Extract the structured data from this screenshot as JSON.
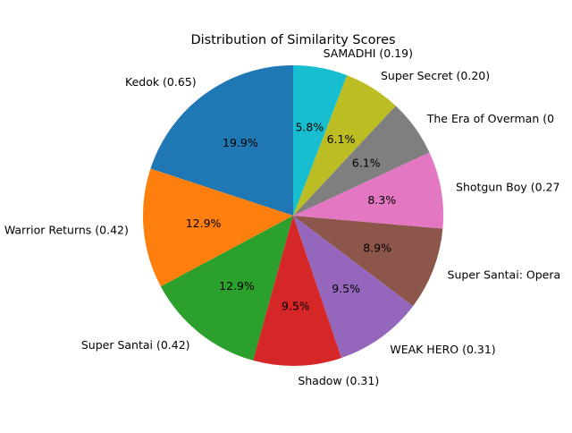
{
  "chart_data": {
    "type": "pie",
    "title": "Distribution of Similarity Scores",
    "start_angle_deg": 90,
    "direction": "counterclockwise",
    "slices": [
      {
        "label": "Kedok (0.65)",
        "value": 0.65,
        "percent_label": "19.9%",
        "color": "#1f77b4"
      },
      {
        "label": "Warrior Returns (0.42)",
        "value": 0.42,
        "percent_label": "12.9%",
        "color": "#ff7f0e"
      },
      {
        "label": "Super Santai (0.42)",
        "value": 0.42,
        "percent_label": "12.9%",
        "color": "#2ca02c"
      },
      {
        "label": "Shadow (0.31)",
        "value": 0.31,
        "percent_label": "9.5%",
        "color": "#d62728"
      },
      {
        "label": "WEAK HERO (0.31)",
        "value": 0.31,
        "percent_label": "9.5%",
        "color": "#9467bd"
      },
      {
        "label": "Super Santai: Opera",
        "value": 0.29,
        "percent_label": "8.9%",
        "color": "#8c564b"
      },
      {
        "label": "Shotgun Boy (0.27",
        "value": 0.27,
        "percent_label": "8.3%",
        "color": "#e377c2"
      },
      {
        "label": "The Era of Overman (0",
        "value": 0.2,
        "percent_label": "6.1%",
        "color": "#7f7f7f"
      },
      {
        "label": "Super Secret (0.20)",
        "value": 0.2,
        "percent_label": "6.1%",
        "color": "#bcbd22"
      },
      {
        "label": "SAMADHI (0.19)",
        "value": 0.19,
        "percent_label": "5.8%",
        "color": "#17becf"
      }
    ]
  }
}
